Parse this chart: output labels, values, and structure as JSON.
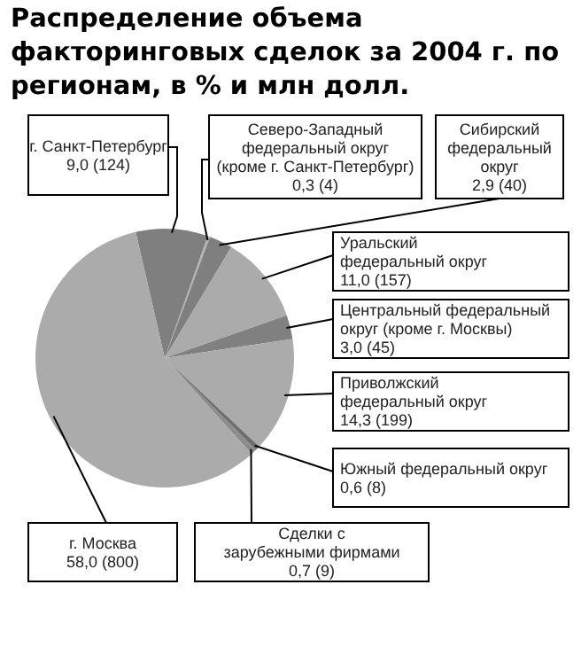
{
  "chart_data": {
    "type": "pie",
    "title": "Распределение объема факторинговых сделок за 2004 г. по регионам, в % и млн долл.",
    "categories": [
      "г. Санкт-Петербург",
      "Северо-Западный федеральный округ (кроме г. Санкт-Петербург)",
      "Сибирский федеральный округ",
      "Уральский федеральный округ",
      "Центральный федеральный округ (кроме г. Москвы)",
      "Приволжский федеральный округ",
      "Южный федеральный округ",
      "Сделки с зарубежными фирмами",
      "г. Москва"
    ],
    "values": [
      9.0,
      0.3,
      2.9,
      11.0,
      3.0,
      14.3,
      0.6,
      0.7,
      58.0
    ],
    "value_labels": [
      "9,0 (124)",
      "0,3 (4)",
      "2,9 (40)",
      "11,0 (157)",
      "3,0 (45)",
      "14,3 (199)",
      "0,6 (8)",
      "0,7 (9)",
      "58,0 (800)"
    ],
    "colors": [
      "#7f7f7f",
      "#b2b2b2",
      "#7f7f7f",
      "#ababab",
      "#808080",
      "#ababab",
      "#6e6e6e",
      "#8c8c8c",
      "#ababab"
    ]
  }
}
